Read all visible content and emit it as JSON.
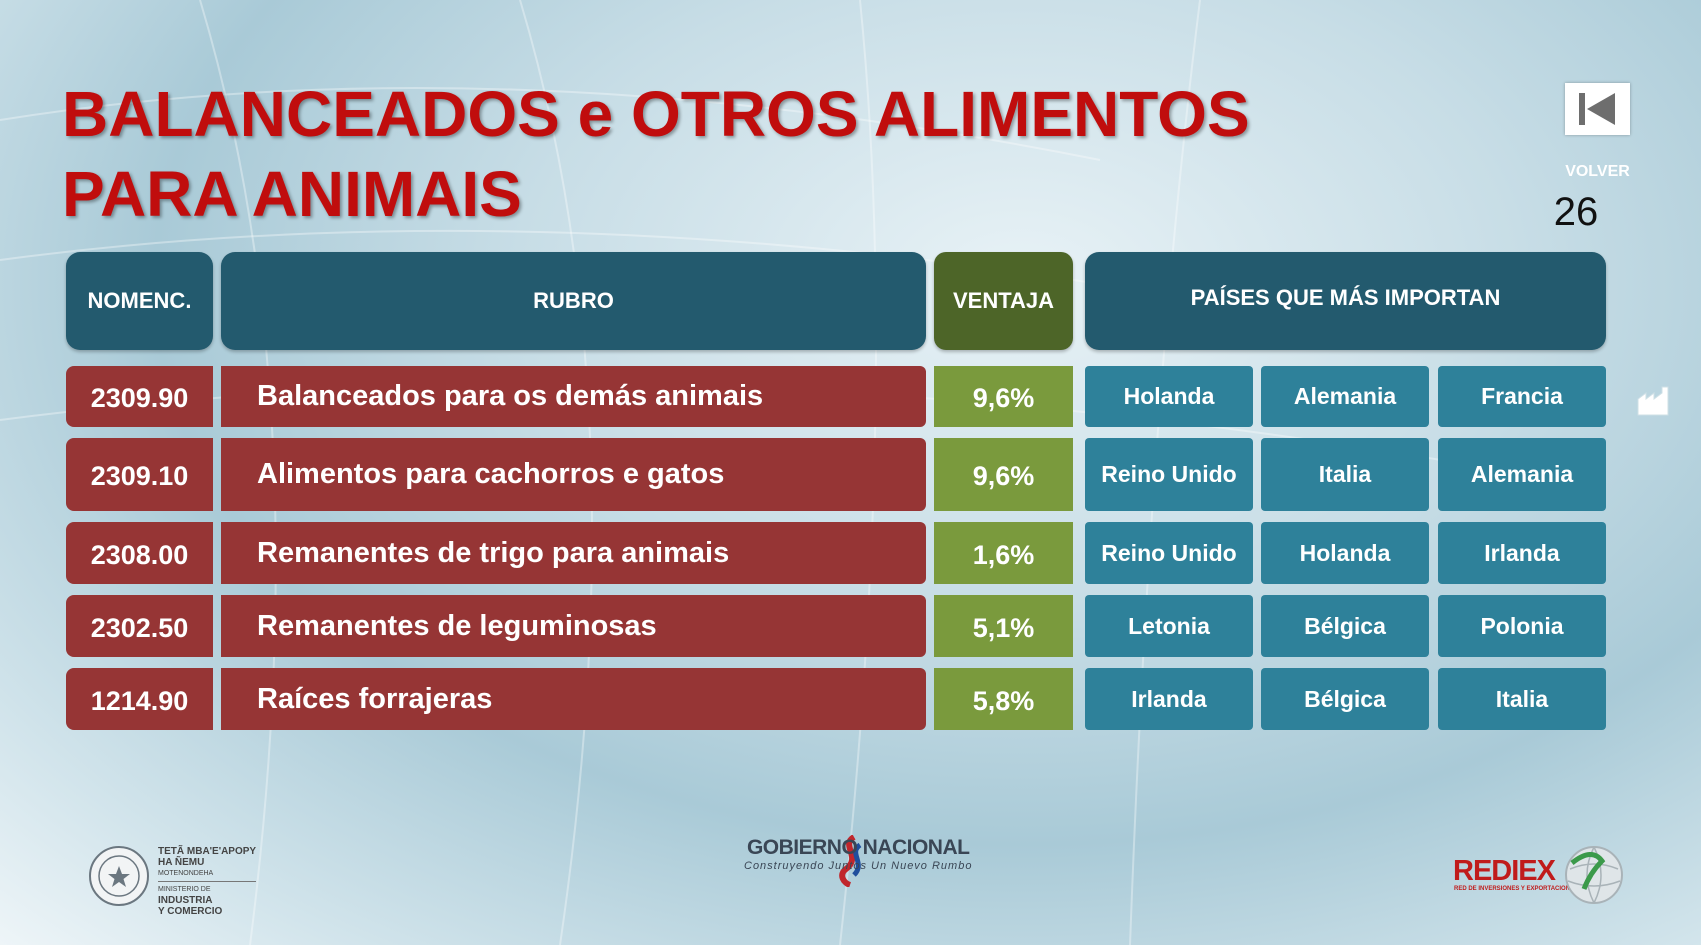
{
  "title": {
    "line1": "BALANCEADOS e OTROS ALIMENTOS",
    "line2": "PARA ANIMAIS"
  },
  "nav": {
    "volver_label": "VOLVER",
    "page_number": "26",
    "back_icon": "skip-back-icon"
  },
  "table": {
    "headers": {
      "nomenclatura": "NOMENC.",
      "rubro": "RUBRO",
      "ventaja": "VENTAJA",
      "paises": "PAÍSES QUE MÁS IMPORTAN"
    },
    "rows": [
      {
        "code": "2309.90",
        "rubro": "Balanceados para os demás animais",
        "ventaja": "9,6%",
        "countries": [
          "Holanda",
          "Alemania",
          "Francia"
        ]
      },
      {
        "code": "2309.10",
        "rubro": "Alimentos para cachorros e gatos",
        "ventaja": "9,6%",
        "countries": [
          "Reino Unido",
          "Italia",
          "Alemania"
        ]
      },
      {
        "code": "2308.00",
        "rubro": "Remanentes de trigo para animais",
        "ventaja": "1,6%",
        "countries": [
          "Reino Unido",
          "Holanda",
          "Irlanda"
        ]
      },
      {
        "code": "2302.50",
        "rubro": "Remanentes de leguminosas",
        "ventaja": "5,1%",
        "countries": [
          "Letonia",
          "Bélgica",
          "Polonia"
        ]
      },
      {
        "code": "1214.90",
        "rubro": "Raíces forrajeras",
        "ventaja": "5,8%",
        "countries": [
          "Irlanda",
          "Bélgica",
          "Italia"
        ]
      }
    ]
  },
  "side_icon": "factory-icon",
  "colors": {
    "title": "#c00d0d",
    "header": "#235a6e",
    "ventaja_header": "#4d6528",
    "row_red": "#963535",
    "row_green": "#7a9a3d",
    "country_blue": "#2e819a"
  },
  "footer": {
    "mic": {
      "line1": "TETÃ MBA'E'APOPY",
      "line2": "HA ÑEMU",
      "line3": "MOTENONDEHA",
      "line4": "MINISTERIO DE",
      "line5": "INDUSTRIA",
      "line6": "Y COMERCIO"
    },
    "gobierno": {
      "name": "GOBIERNO NACIONAL",
      "tagline": "Construyendo Juntos Un Nuevo Rumbo"
    },
    "rediex": {
      "name": "REDIEX",
      "tagline": "RED DE INVERSIONES Y EXPORTACIONES"
    }
  }
}
